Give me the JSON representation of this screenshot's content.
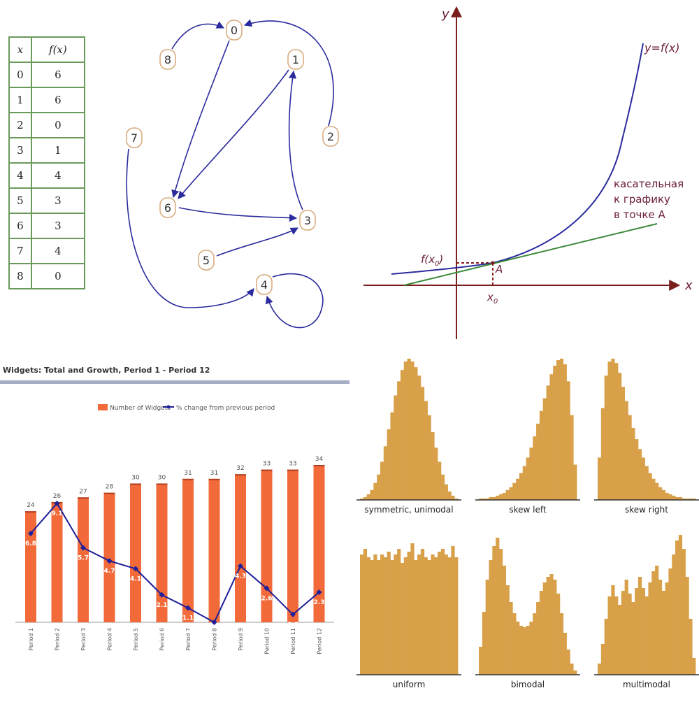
{
  "table": {
    "headers": [
      "x",
      "f(x)"
    ],
    "rows": [
      [
        "0",
        "6"
      ],
      [
        "1",
        "6"
      ],
      [
        "2",
        "0"
      ],
      [
        "3",
        "1"
      ],
      [
        "4",
        "4"
      ],
      [
        "5",
        "3"
      ],
      [
        "6",
        "3"
      ],
      [
        "7",
        "4"
      ],
      [
        "8",
        "0"
      ]
    ]
  },
  "graph": {
    "nodes": [
      "0",
      "1",
      "2",
      "3",
      "4",
      "5",
      "6",
      "7",
      "8"
    ],
    "edges": [
      [
        0,
        6
      ],
      [
        1,
        6
      ],
      [
        2,
        0
      ],
      [
        3,
        1
      ],
      [
        4,
        4
      ],
      [
        5,
        3
      ],
      [
        6,
        3
      ],
      [
        7,
        4
      ],
      [
        8,
        0
      ]
    ]
  },
  "tangent": {
    "y_axis": "y",
    "x_axis": "x",
    "curve_label": "y=f(x)",
    "tangent_label_lines": [
      "касательная",
      "к графику",
      "в точке A"
    ],
    "point_label": "A",
    "fx0_label": "f(x",
    "fx0_sub": "0",
    "x0_label": "x",
    "x0_sub": "0",
    "colors": {
      "axes": "#7a1e1e",
      "curve": "#2b2b9e",
      "tangent": "#3a8a3a",
      "label": "#6a1b3a"
    }
  },
  "chart_data": [
    {
      "type": "bar",
      "title": "Widgets: Total and Growth, Period 1 - Period 12",
      "categories": [
        "Period 1",
        "Period 2",
        "Period 3",
        "Period 4",
        "Period 5",
        "Period 6",
        "Period 7",
        "Period 8",
        "Period 9",
        "Period 10",
        "Period 11",
        "Period 12"
      ],
      "series": [
        {
          "name": "Number of Widgets",
          "type": "bar",
          "color": "#f26a3a",
          "values": [
            24,
            26,
            27,
            28,
            30,
            30,
            31,
            31,
            32,
            33,
            33,
            34
          ]
        },
        {
          "name": "% change from previous period",
          "type": "line",
          "color": "#1f1f9a",
          "values": [
            6.8,
            9.1,
            5.7,
            4.7,
            4.1,
            2.1,
            1.1,
            0.0,
            4.3,
            2.6,
            0.6,
            2.3
          ]
        }
      ],
      "legend": "top"
    },
    {
      "type": "bar",
      "panels": [
        {
          "label": "symmetric, unimodal",
          "values": [
            1,
            2,
            4,
            7,
            12,
            18,
            27,
            38,
            50,
            62,
            74,
            84,
            92,
            98,
            100,
            98,
            94,
            88,
            80,
            70,
            60,
            48,
            37,
            27,
            18,
            11,
            6,
            3,
            1
          ]
        },
        {
          "label": "skew left",
          "values": [
            1,
            1,
            1,
            2,
            2,
            3,
            4,
            5,
            7,
            9,
            12,
            15,
            19,
            24,
            30,
            37,
            45,
            54,
            63,
            72,
            81,
            89,
            95,
            99,
            100,
            96,
            84,
            60,
            25
          ]
        },
        {
          "label": "skew right",
          "values": [
            30,
            65,
            88,
            98,
            100,
            97,
            90,
            80,
            70,
            60,
            51,
            43,
            36,
            30,
            24,
            19,
            15,
            12,
            9,
            7,
            5,
            4,
            3,
            2,
            2,
            1,
            1,
            1,
            1
          ]
        },
        {
          "label": "uniform",
          "values": [
            86,
            90,
            84,
            82,
            86,
            82,
            86,
            84,
            88,
            82,
            86,
            90,
            80,
            84,
            88,
            94,
            82,
            86,
            90,
            84,
            82,
            86,
            84,
            88,
            90,
            86,
            84,
            92,
            84
          ]
        },
        {
          "label": "bimodal",
          "values": [
            20,
            45,
            68,
            82,
            92,
            98,
            90,
            78,
            64,
            52,
            44,
            38,
            35,
            34,
            35,
            38,
            44,
            52,
            60,
            66,
            70,
            72,
            68,
            58,
            44,
            30,
            18,
            8,
            3
          ]
        },
        {
          "label": "multimodal",
          "values": [
            8,
            22,
            40,
            56,
            64,
            56,
            50,
            60,
            68,
            58,
            52,
            62,
            70,
            62,
            56,
            66,
            74,
            78,
            68,
            60,
            66,
            76,
            86,
            96,
            100,
            90,
            70,
            40,
            12
          ]
        }
      ]
    }
  ],
  "histogram_color": "#d9a04a"
}
